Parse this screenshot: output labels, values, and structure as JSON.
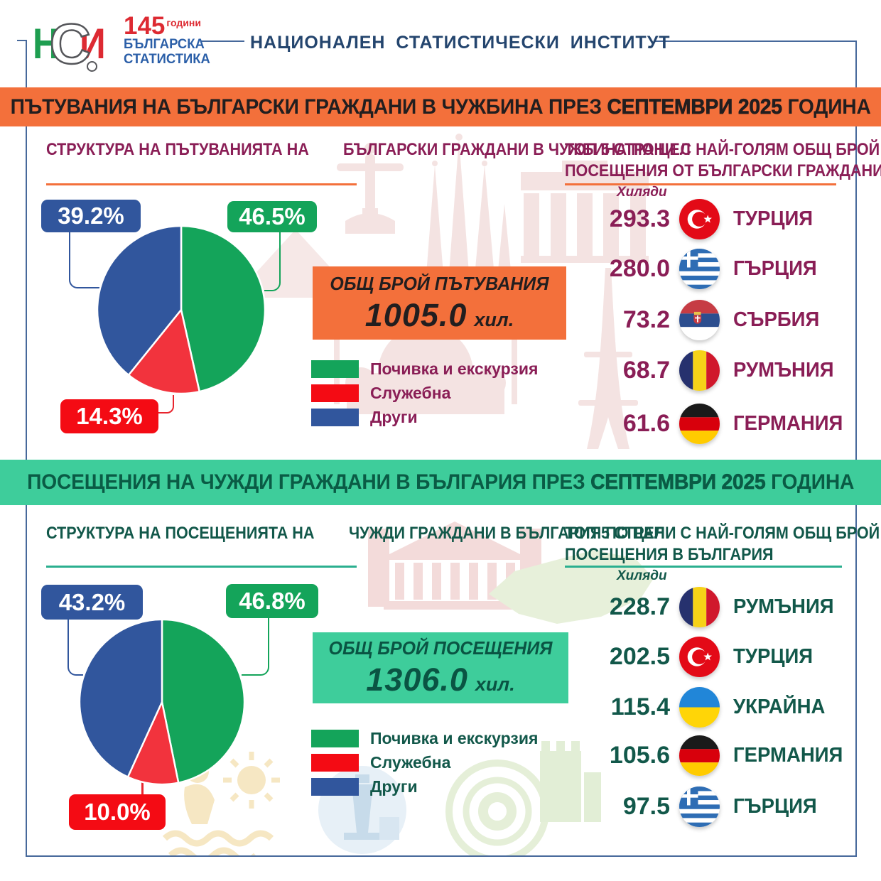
{
  "header": {
    "institute": "НАЦИОНАЛЕН СТАТИСТИЧЕСКИ ИНСТИТУТ",
    "logo": {
      "letter_1": "Н",
      "letter_2": "С",
      "letter_3": "И",
      "years": "145",
      "years_word": "години",
      "brand_1": "БЪЛГАРСКА",
      "brand_2": "СТАТИСТИКА"
    }
  },
  "sections": [
    {
      "banner_pre": "ПЪТУВАНИЯ НА БЪЛГАРСКИ ГРАЖДАНИ В ЧУЖБИНА ПРЕЗ ",
      "banner_highlight": "СЕПТЕМВРИ 2025",
      "banner_post": " ГОДИНА",
      "structure_title_1": "СТРУКТУРА НА ПЪТУВАНИЯТА НА",
      "structure_title_2": "БЪЛГАРСКИ ГРАЖДАНИ В ЧУЖБИНА ПО ЦЕЛ",
      "total_label": "ОБЩ БРОЙ ПЪТУВАНИЯ",
      "total_value": "1005.0",
      "total_unit": "хил.",
      "top_title_1": "ТОП 5 СТРАНИ С НАЙ-ГОЛЯМ ОБЩ БРОЙ",
      "top_title_2": "ПОСЕЩЕНИЯ ОТ БЪЛГАРСКИ ГРАЖДАНИ",
      "unit_label": "Хиляди",
      "flags": [
        "tr",
        "gr",
        "rs",
        "ro",
        "de"
      ]
    },
    {
      "banner_pre": "ПОСЕЩЕНИЯ НА ЧУЖДИ ГРАЖДАНИ В БЪЛГАРИЯ ПРЕЗ ",
      "banner_highlight": "СЕПТЕМВРИ 2025",
      "banner_post": " ГОДИНА",
      "structure_title_1": "СТРУКТУРА НА ПОСЕЩЕНИЯТА НА",
      "structure_title_2": "ЧУЖДИ ГРАЖДАНИ В БЪЛГАРИЯ ПО ЦЕЛ",
      "total_label": "ОБЩ БРОЙ ПОСЕЩЕНИЯ",
      "total_value": "1306.0",
      "total_unit": "хил.",
      "top_title_1": "ТОП 5 СТРАНИ С НАЙ-ГОЛЯМ ОБЩ БРОЙ",
      "top_title_2": "ПОСЕЩЕНИЯ В БЪЛГАРИЯ",
      "unit_label": "Хиляди",
      "flags": [
        "ro",
        "tr",
        "ua",
        "de",
        "gr"
      ]
    }
  ],
  "chart_data": [
    {
      "type": "pie",
      "title": "СТРУКТУРА НА ПЪТУВАНИЯТА НА БЪЛГАРСКИ ГРАЖДАНИ В ЧУЖБИНА ПО ЦЕЛ",
      "labels": [
        "Почивка и екскурзия",
        "Служебна",
        "Други"
      ],
      "values": [
        46.5,
        14.3,
        39.2
      ],
      "unit": "%",
      "colors": [
        "#14A45A",
        "#F2333D",
        "#31569D"
      ],
      "legend_position": "right"
    },
    {
      "type": "pie",
      "title": "СТРУКТУРА НА ПОСЕЩЕНИЯТА НА ЧУЖДИ ГРАЖДАНИ В БЪЛГАРИЯ ПО ЦЕЛ",
      "labels": [
        "Почивка и екскурзия",
        "Служебна",
        "Други"
      ],
      "values": [
        46.8,
        10.0,
        43.2
      ],
      "unit": "%",
      "colors": [
        "#14A45A",
        "#F2333D",
        "#31569D"
      ],
      "legend_position": "right"
    },
    {
      "type": "table",
      "title": "ТОП 5 СТРАНИ С НАЙ-ГОЛЯМ ОБЩ БРОЙ ПОСЕЩЕНИЯ ОТ БЪЛГАРСКИ ГРАЖДАНИ",
      "unit": "Хиляди",
      "categories": [
        "ТУРЦИЯ",
        "ГЪРЦИЯ",
        "СЪРБИЯ",
        "РУМЪНИЯ",
        "ГЕРМАНИЯ"
      ],
      "values": [
        293.3,
        280.0,
        73.2,
        68.7,
        61.6
      ]
    },
    {
      "type": "table",
      "title": "ТОП 5 СТРАНИ С НАЙ-ГОЛЯМ ОБЩ БРОЙ ПОСЕЩЕНИЯ В БЪЛГАРИЯ",
      "unit": "Хиляди",
      "categories": [
        "РУМЪНИЯ",
        "ТУРЦИЯ",
        "УКРАЙНА",
        "ГЕРМАНИЯ",
        "ГЪРЦИЯ"
      ],
      "values": [
        228.7,
        202.5,
        115.4,
        105.6,
        97.5
      ]
    }
  ],
  "colors": {
    "banner_orange": "#F3703B",
    "banner_mint": "#3ECD9B",
    "maroon_text": "#8A1E56",
    "dark_green_text": "#12584A",
    "pie_green": "#14A45A",
    "pie_red": "#F2333D",
    "pie_blue": "#31569D",
    "callout_red": "#F40B14",
    "frame_blue": "#47699B",
    "underline_teal": "#2BAF8F",
    "banner_text_dark": "#221E1F",
    "banner_text_green": "#0A5B45"
  }
}
